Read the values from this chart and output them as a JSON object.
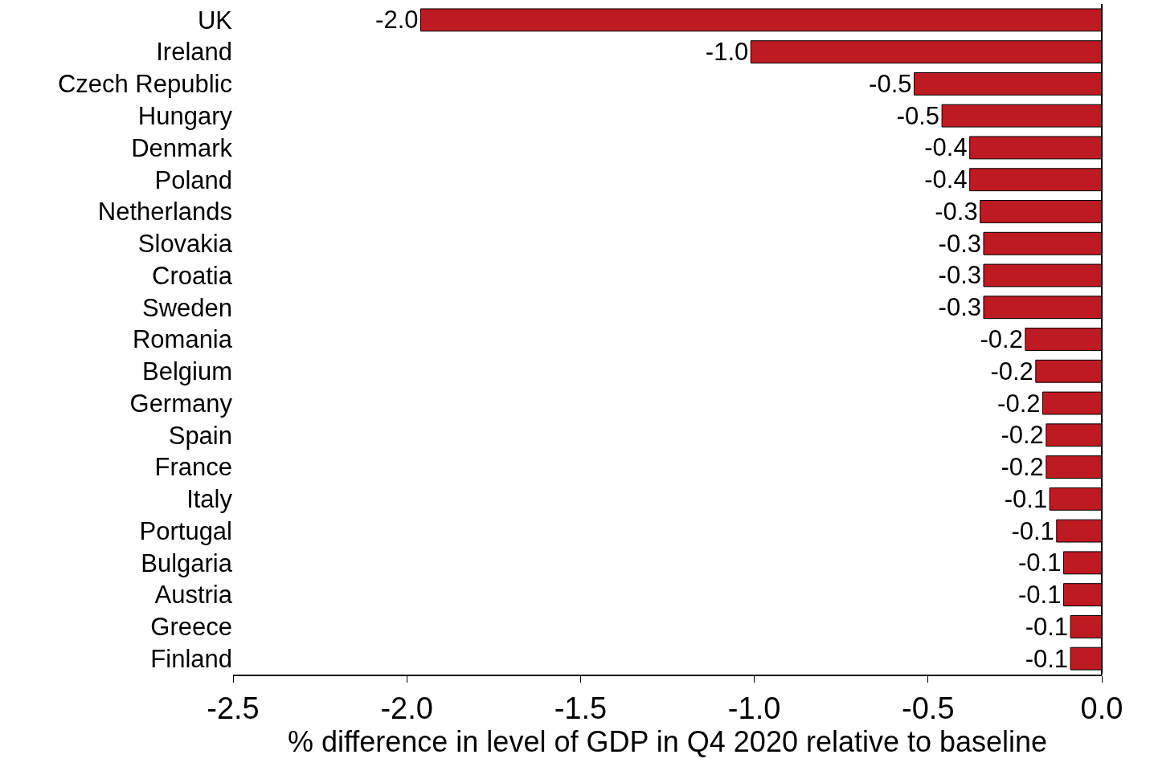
{
  "chart_data": {
    "type": "bar",
    "orientation": "horizontal",
    "xlabel": "% difference in level of GDP in Q4 2020 relative to baseline",
    "categories": [
      "UK",
      "Ireland",
      "Czech Republic",
      "Hungary",
      "Denmark",
      "Poland",
      "Netherlands",
      "Slovakia",
      "Croatia",
      "Sweden",
      "Romania",
      "Belgium",
      "Germany",
      "Spain",
      "France",
      "Italy",
      "Portugal",
      "Bulgaria",
      "Austria",
      "Greece",
      "Finland"
    ],
    "values": [
      -1.96,
      -1.01,
      -0.54,
      -0.46,
      -0.38,
      -0.38,
      -0.35,
      -0.34,
      -0.34,
      -0.34,
      -0.22,
      -0.19,
      -0.17,
      -0.16,
      -0.16,
      -0.15,
      -0.13,
      -0.11,
      -0.11,
      -0.09,
      -0.09
    ],
    "value_labels": [
      "-2.0",
      "-1.0",
      "-0.5",
      "-0.5",
      "-0.4",
      "-0.4",
      "-0.3",
      "-0.3",
      "-0.3",
      "-0.3",
      "-0.2",
      "-0.2",
      "-0.2",
      "-0.2",
      "-0.2",
      "-0.1",
      "-0.1",
      "-0.1",
      "-0.1",
      "-0.1",
      "-0.1"
    ],
    "color": "#be1a22",
    "xlim": [
      -2.5,
      0
    ],
    "xticks": [
      {
        "value": -2.5,
        "label": "-2.5"
      },
      {
        "value": -2,
        "label": "-2.0"
      },
      {
        "value": -1.5,
        "label": "-1.5"
      },
      {
        "value": -1,
        "label": "-1.0"
      },
      {
        "value": -0.5,
        "label": "-0.5"
      },
      {
        "value": 0,
        "label": "0.0"
      }
    ],
    "grid": false
  }
}
